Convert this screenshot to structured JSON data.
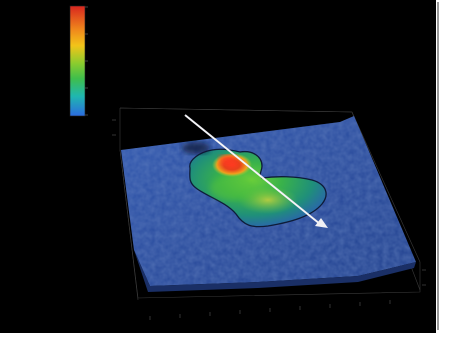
{
  "viewer": {
    "background_color": "#000000",
    "frame_color": "#ffffff"
  },
  "color_scale": {
    "tick_labels": [
      "",
      "",
      "",
      "",
      ""
    ],
    "colors": [
      "#d8261f",
      "#f2c419",
      "#5cc434",
      "#1fb79a",
      "#2b6be0"
    ]
  },
  "surface": {
    "base_color": "#2c4fa3",
    "peak_color": "#d8261f",
    "plateau_color": "#3faa38",
    "contour_color": "#10203a"
  },
  "arrow": {
    "color": "#e8e8ee"
  },
  "icons": [
    "arrow-icon"
  ]
}
